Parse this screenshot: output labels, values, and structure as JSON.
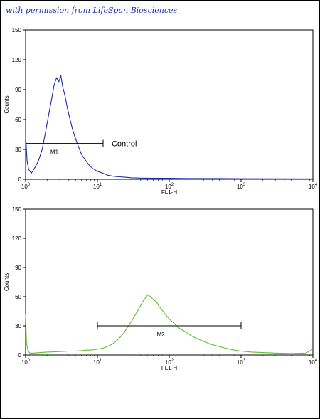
{
  "header": {
    "permission_text": "with permission from LifeSpan Biosciences"
  },
  "colors": {
    "control_line": "#1a2aa8",
    "sample_line": "#5cc02a",
    "axis": "#000000"
  },
  "chart_data": [
    {
      "type": "line",
      "title": "",
      "xlabel": "FL1-H",
      "ylabel": "Counts",
      "xscale": "log",
      "xlim": [
        1,
        10000
      ],
      "ylim": [
        0,
        150
      ],
      "x_ticks": [
        1,
        10,
        100,
        1000,
        10000
      ],
      "x_tick_labels": [
        {
          "base": "10",
          "exp": "0"
        },
        {
          "base": "10",
          "exp": "1"
        },
        {
          "base": "10",
          "exp": "2"
        },
        {
          "base": "10",
          "exp": "3"
        },
        {
          "base": "10",
          "exp": "4"
        }
      ],
      "y_ticks": [
        0,
        30,
        60,
        90,
        120,
        150
      ],
      "y_tick_labels": [
        "0",
        "30",
        "60",
        "90",
        "120",
        "150"
      ],
      "grid": false,
      "series": [
        {
          "name": "Control",
          "color": "#1a2aa8",
          "x": [
            1,
            1.05,
            1.1,
            1.2,
            1.35,
            1.5,
            1.7,
            1.9,
            2.1,
            2.3,
            2.5,
            2.7,
            2.9,
            3.1,
            3.3,
            3.5,
            3.8,
            4.1,
            4.5,
            5.0,
            5.5,
            6.0,
            6.7,
            7.5,
            8.5,
            10,
            12,
            14,
            17,
            20,
            25,
            30,
            40,
            60,
            100,
            200,
            500,
            1000,
            3000,
            10000
          ],
          "y": [
            45,
            18,
            10,
            6,
            12,
            18,
            30,
            48,
            65,
            80,
            95,
            102,
            98,
            104,
            92,
            85,
            72,
            62,
            50,
            40,
            32,
            25,
            20,
            15,
            11,
            8,
            6,
            4,
            3,
            2.5,
            2,
            1.5,
            1.2,
            1,
            1,
            0.8,
            0.8,
            0.6,
            0.5,
            0.4
          ]
        }
      ],
      "markers": [
        {
          "label": "M1",
          "x_start": 1,
          "x_end": 12,
          "y": 36
        }
      ],
      "annotations": [
        {
          "text": "Control"
        }
      ]
    },
    {
      "type": "line",
      "title": "",
      "xlabel": "FL1-H",
      "ylabel": "Counts",
      "xscale": "log",
      "xlim": [
        1,
        10000
      ],
      "ylim": [
        0,
        150
      ],
      "x_ticks": [
        1,
        10,
        100,
        1000,
        10000
      ],
      "x_tick_labels": [
        {
          "base": "10",
          "exp": "0"
        },
        {
          "base": "10",
          "exp": "1"
        },
        {
          "base": "10",
          "exp": "2"
        },
        {
          "base": "10",
          "exp": "3"
        },
        {
          "base": "10",
          "exp": "4"
        }
      ],
      "y_ticks": [
        0,
        30,
        60,
        90,
        120,
        150
      ],
      "y_tick_labels": [
        "0",
        "30",
        "60",
        "90",
        "120",
        "150"
      ],
      "grid": false,
      "series": [
        {
          "name": "",
          "color": "#5cc02a",
          "x": [
            1,
            1.03,
            1.08,
            1.15,
            1.3,
            1.6,
            2,
            3,
            4,
            5,
            6,
            7,
            8,
            9,
            10,
            12,
            14,
            16,
            18,
            20,
            23,
            26,
            30,
            34,
            38,
            42,
            46,
            50,
            55,
            60,
            66,
            72,
            80,
            90,
            100,
            115,
            130,
            150,
            175,
            200,
            240,
            300,
            380,
            480,
            600,
            800,
            1000,
            1400,
            2000,
            3000,
            5000,
            8000,
            10000
          ],
          "y": [
            42,
            12,
            4,
            2,
            2,
            2.5,
            3,
            3.5,
            4,
            4,
            4.5,
            5,
            5,
            5.5,
            6,
            7,
            9,
            11,
            14,
            17,
            22,
            28,
            35,
            42,
            48,
            54,
            58,
            62,
            60,
            57,
            55,
            50,
            46,
            41,
            37,
            33,
            29,
            26,
            23,
            20,
            17,
            14,
            11,
            9,
            7,
            5,
            4,
            3,
            2.5,
            2,
            1.5,
            2,
            6
          ]
        }
      ],
      "markers": [
        {
          "label": "M2",
          "x_start": 10,
          "x_end": 1000,
          "y": 30
        }
      ],
      "annotations": []
    }
  ]
}
